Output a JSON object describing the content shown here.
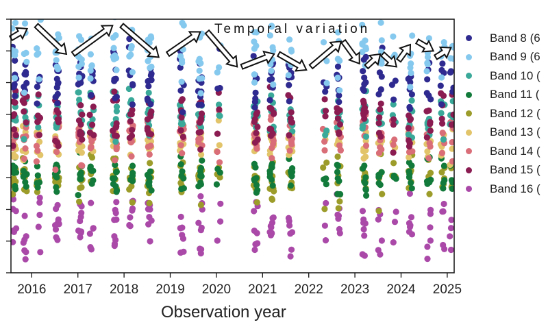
{
  "chart_data": {
    "type": "scatter",
    "title": "",
    "annotation": "Temporal variation",
    "xlabel": "Observation year",
    "ylabel": "",
    "xlim": [
      2015.55,
      2025.15
    ],
    "ylim": [
      0,
      8
    ],
    "x_ticks": [
      "2016",
      "2017",
      "2018",
      "2019",
      "2020",
      "2021",
      "2022",
      "2023",
      "2024",
      "2025"
    ],
    "y_ticks_count": 9,
    "y_tick_labels_visible": false,
    "grid": false,
    "legend_position": "right",
    "series": [
      {
        "name": "Band 8 (6",
        "color": "#2e2a8f",
        "y_center": 6.1,
        "spread": 0.55
      },
      {
        "name": "Band 9 (6",
        "color": "#86c9ee",
        "y_center": 6.9,
        "spread": 0.6
      },
      {
        "name": "Band 10 (",
        "color": "#3aa99a",
        "y_center": 5.0,
        "spread": 0.5
      },
      {
        "name": "Band 11 (",
        "color": "#127a3a",
        "y_center": 3.05,
        "spread": 0.35
      },
      {
        "name": "Band 12 (",
        "color": "#9c9c2a",
        "y_center": 2.95,
        "spread": 0.45
      },
      {
        "name": "Band 13 (",
        "color": "#e2c46a",
        "y_center": 4.1,
        "spread": 0.35
      },
      {
        "name": "Band 14 (",
        "color": "#d96d78",
        "y_center": 4.3,
        "spread": 0.45
      },
      {
        "name": "Band 15 (",
        "color": "#8a1c52",
        "y_center": 4.9,
        "spread": 0.55
      },
      {
        "name": "Band 16 (",
        "color": "#aa49a8",
        "y_center": 1.5,
        "spread": 0.6
      }
    ],
    "observation_clusters_years": [
      2015.62,
      2015.85,
      2016.15,
      2016.55,
      2017.05,
      2017.3,
      2017.8,
      2018.15,
      2018.55,
      2019.25,
      2019.65,
      2020.05,
      2020.85,
      2021.2,
      2021.6,
      2022.35,
      2022.65,
      2023.2,
      2023.55,
      2023.85,
      2024.2,
      2024.6,
      2024.9,
      2025.1
    ],
    "trend_arrows": [
      {
        "from": [
          2015.55,
          7.4
        ],
        "to": [
          2015.9,
          7.7
        ]
      },
      {
        "from": [
          2016.1,
          7.8
        ],
        "to": [
          2016.75,
          6.9
        ]
      },
      {
        "from": [
          2016.9,
          6.9
        ],
        "to": [
          2017.75,
          7.8
        ]
      },
      {
        "from": [
          2017.95,
          7.8
        ],
        "to": [
          2018.75,
          6.8
        ]
      },
      {
        "from": [
          2018.95,
          6.9
        ],
        "to": [
          2019.65,
          7.6
        ]
      },
      {
        "from": [
          2019.8,
          7.6
        ],
        "to": [
          2020.45,
          6.5
        ]
      },
      {
        "from": [
          2020.55,
          6.5
        ],
        "to": [
          2021.25,
          6.9
        ]
      },
      {
        "from": [
          2021.35,
          6.9
        ],
        "to": [
          2021.95,
          6.4
        ]
      },
      {
        "from": [
          2022.05,
          6.5
        ],
        "to": [
          2022.7,
          7.3
        ]
      },
      {
        "from": [
          2022.75,
          7.3
        ],
        "to": [
          2023.1,
          6.6
        ]
      },
      {
        "from": [
          2023.25,
          6.5
        ],
        "to": [
          2023.55,
          6.9
        ]
      },
      {
        "from": [
          2023.6,
          6.9
        ],
        "to": [
          2023.9,
          6.5
        ]
      },
      {
        "from": [
          2023.95,
          6.7
        ],
        "to": [
          2024.2,
          7.2
        ]
      },
      {
        "from": [
          2024.35,
          7.3
        ],
        "to": [
          2024.7,
          7.0
        ]
      },
      {
        "from": [
          2024.75,
          6.8
        ],
        "to": [
          2025.08,
          7.1
        ]
      }
    ]
  }
}
